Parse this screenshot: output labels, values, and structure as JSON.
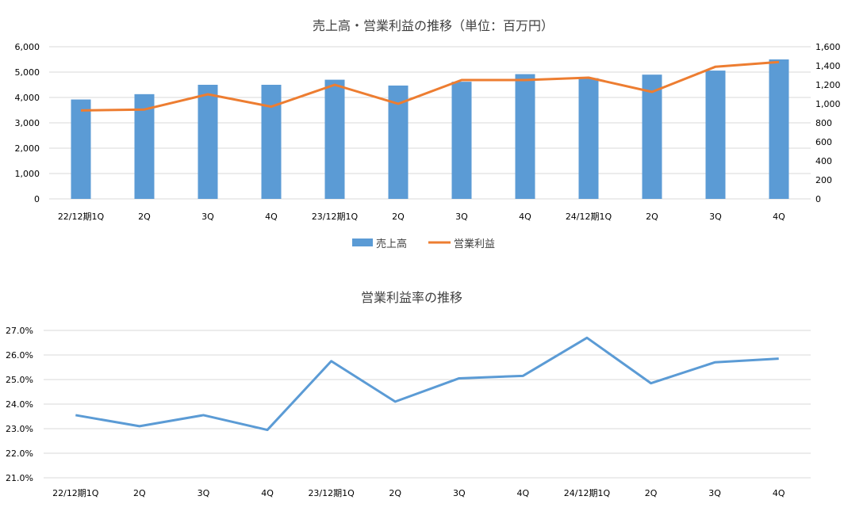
{
  "chart_data": [
    {
      "type": "bar",
      "title": "売上高・営業利益の推移（単位：百万円）",
      "categories": [
        "22/12期1Q",
        "2Q",
        "3Q",
        "4Q",
        "23/12期1Q",
        "2Q",
        "3Q",
        "4Q",
        "24/12期1Q",
        "2Q",
        "3Q",
        "4Q"
      ],
      "y_ticks": [
        "6,000",
        "5,000",
        "4,000",
        "3,000",
        "2,000",
        "1,000",
        "0"
      ],
      "y2_ticks": [
        "1,600",
        "1,400",
        "1,200",
        "1,000",
        "800",
        "600",
        "400",
        "200",
        "0"
      ],
      "ylim": [
        0,
        6000
      ],
      "y2lim": [
        0,
        1600
      ],
      "grid": true,
      "legend_position": "bottom",
      "series": [
        {
          "name": "売上高",
          "type": "bar",
          "axis": "left",
          "color": "#5b9bd5",
          "values": [
            3920,
            4130,
            4500,
            4500,
            4700,
            4470,
            4620,
            4920,
            4760,
            4900,
            5060,
            5500
          ]
        },
        {
          "name": "営業利益",
          "type": "line",
          "axis": "right",
          "color": "#ed7d31",
          "values": [
            930,
            940,
            1100,
            970,
            1200,
            1000,
            1250,
            1250,
            1275,
            1125,
            1390,
            1440
          ]
        }
      ]
    },
    {
      "type": "line",
      "title": "営業利益率の推移",
      "categories": [
        "22/12期1Q",
        "2Q",
        "3Q",
        "4Q",
        "23/12期1Q",
        "2Q",
        "3Q",
        "4Q",
        "24/12期1Q",
        "2Q",
        "3Q",
        "4Q"
      ],
      "y_ticks": [
        "27.0%",
        "26.0%",
        "25.0%",
        "24.0%",
        "23.0%",
        "22.0%",
        "21.0%"
      ],
      "ylim": [
        21.0,
        27.0
      ],
      "grid": true,
      "series": [
        {
          "name": "営業利益率",
          "color": "#5b9bd5",
          "values": [
            23.55,
            23.1,
            23.55,
            22.95,
            25.75,
            24.1,
            25.05,
            25.15,
            26.7,
            24.85,
            25.7,
            25.85
          ]
        }
      ]
    }
  ]
}
